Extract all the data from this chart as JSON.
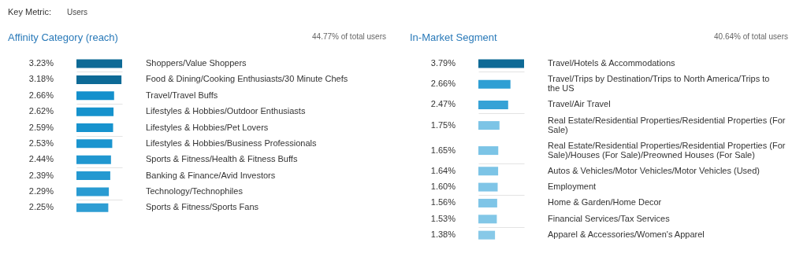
{
  "chart_data": [
    {
      "type": "bar",
      "orientation": "horizontal",
      "title": "Affinity Category (reach)",
      "tick_labels": false,
      "grid": "y",
      "annotations": [
        "44.77% of total users",
        "Key Metric:",
        "Users"
      ],
      "categories": [
        "Shoppers/Value Shoppers",
        "Food & Dining/Cooking Enthusiasts/30 Minute Chefs",
        "Travel/Travel Buffs",
        "Lifestyles & Hobbies/Outdoor Enthusiasts",
        "Lifestyles & Hobbies/Pet Lovers",
        "Lifestyles & Hobbies/Business Professionals",
        "Sports & Fitness/Health & Fitness Buffs",
        "Banking & Finance/Avid Investors",
        "Technology/Technophiles",
        "Sports & Fitness/Sports Fans"
      ],
      "values": [
        3.23,
        3.18,
        2.66,
        2.62,
        2.59,
        2.53,
        2.44,
        2.39,
        2.29,
        2.25
      ],
      "value_labels": [
        "3.23%",
        "3.18%",
        "2.66%",
        "2.62%",
        "2.59%",
        "2.53%",
        "2.44%",
        "2.39%",
        "2.29%",
        "2.25%"
      ],
      "colors": [
        "#0e6a96",
        "#0e6a96",
        "#1490cc",
        "#1592cd",
        "#1793ce",
        "#1a95cf",
        "#2097d0",
        "#2499d1",
        "#299bd2",
        "#2e9dd3"
      ]
    },
    {
      "type": "bar",
      "orientation": "horizontal",
      "title": "In-Market Segment",
      "tick_labels": false,
      "grid": "y",
      "annotations": [
        "40.64% of total users"
      ],
      "categories": [
        "Travel/Hotels & Accommodations",
        "Travel/Trips by Destination/Trips to North America/Trips to the US",
        "Travel/Air Travel",
        "Real Estate/Residential Properties/Residential Properties (For Sale)",
        "Real Estate/Residential Properties/Residential Properties (For Sale)/Houses (For Sale)/Preowned Houses (For Sale)",
        "Autos & Vehicles/Motor Vehicles/Motor Vehicles (Used)",
        "Employment",
        "Home & Garden/Home Decor",
        "Financial Services/Tax Services",
        "Apparel & Accessories/Women's Apparel"
      ],
      "values": [
        3.79,
        2.66,
        2.47,
        1.75,
        1.65,
        1.64,
        1.6,
        1.56,
        1.53,
        1.38
      ],
      "value_labels": [
        "3.79%",
        "2.66%",
        "2.47%",
        "1.75%",
        "1.65%",
        "1.64%",
        "1.60%",
        "1.56%",
        "1.53%",
        "1.38%"
      ],
      "colors": [
        "#0e6a96",
        "#2f9fd4",
        "#36a2d6",
        "#7cc4e6",
        "#7cc4e6",
        "#7cc4e6",
        "#7fc5e7",
        "#7fc5e7",
        "#82c7e7",
        "#87c9e8"
      ]
    }
  ]
}
